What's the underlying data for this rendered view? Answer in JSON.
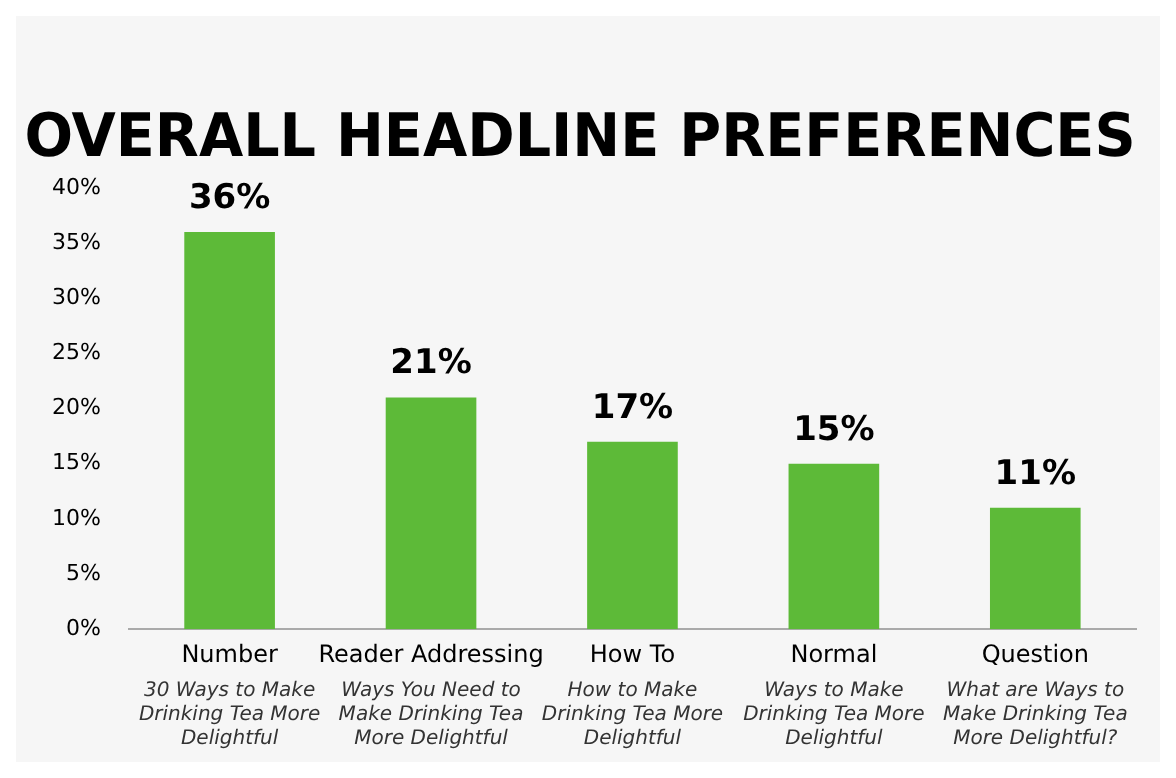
{
  "chart_data": {
    "type": "bar",
    "title": "OVERALL HEADLINE PREFERENCES",
    "categories": [
      "Number",
      "Reader Addressing",
      "How To",
      "Normal",
      "Question"
    ],
    "values": [
      36,
      21,
      17,
      15,
      11
    ],
    "color": "#5dba38",
    "value_labels": [
      "36%",
      "21%",
      "17%",
      "15%",
      "11%"
    ],
    "ylim": [
      0,
      40
    ],
    "yticks": [
      {
        "value": 0,
        "label": "0%"
      },
      {
        "value": 5,
        "label": "5%"
      },
      {
        "value": 10,
        "label": "10%"
      },
      {
        "value": 15,
        "label": "15%"
      },
      {
        "value": 20,
        "label": "20%"
      },
      {
        "value": 25,
        "label": "25%"
      },
      {
        "value": 30,
        "label": "30%"
      },
      {
        "value": 35,
        "label": "35%"
      },
      {
        "value": 40,
        "label": "40%"
      }
    ],
    "annotations": [
      "30 Ways to Make Drinking Tea More Delightful",
      "Ways You Need to Make Drinking Tea More Delightful",
      "How to Make Drinking Tea More Delightful",
      "Ways to Make Drinking Tea More Delightful",
      "What are Ways to Make Drinking Tea More Delightful?"
    ],
    "grid": false,
    "legend": false
  }
}
